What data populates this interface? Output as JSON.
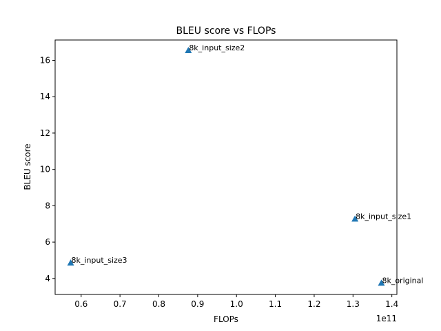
{
  "chart_data": {
    "type": "scatter",
    "title": "BLEU score vs FLOPs",
    "xlabel": "FLOPs",
    "ylabel": "BLEU score",
    "x_offset_label": "1e11",
    "x_scale": 100000000000.0,
    "xlim": [
      0.533,
      1.413
    ],
    "ylim": [
      3.12,
      17.12
    ],
    "xticks": [
      0.6,
      0.7,
      0.8,
      0.9,
      1.0,
      1.1,
      1.2,
      1.3,
      1.4
    ],
    "xtick_labels": [
      "0.6",
      "0.7",
      "0.8",
      "0.9",
      "1.0",
      "1.1",
      "1.2",
      "1.3",
      "1.4"
    ],
    "yticks": [
      4,
      6,
      8,
      10,
      12,
      14,
      16
    ],
    "ytick_labels": [
      "4",
      "6",
      "8",
      "10",
      "12",
      "14",
      "16"
    ],
    "marker": "triangle",
    "color": "#1f77b4",
    "grid": false,
    "points": [
      {
        "label": "8k_original",
        "x": 1.373,
        "y": 3.75
      },
      {
        "label": "8k_input_size1",
        "x": 1.305,
        "y": 7.28
      },
      {
        "label": "8k_input_size2",
        "x": 0.876,
        "y": 16.55
      },
      {
        "label": "8k_input_size3",
        "x": 0.573,
        "y": 4.86
      }
    ]
  }
}
